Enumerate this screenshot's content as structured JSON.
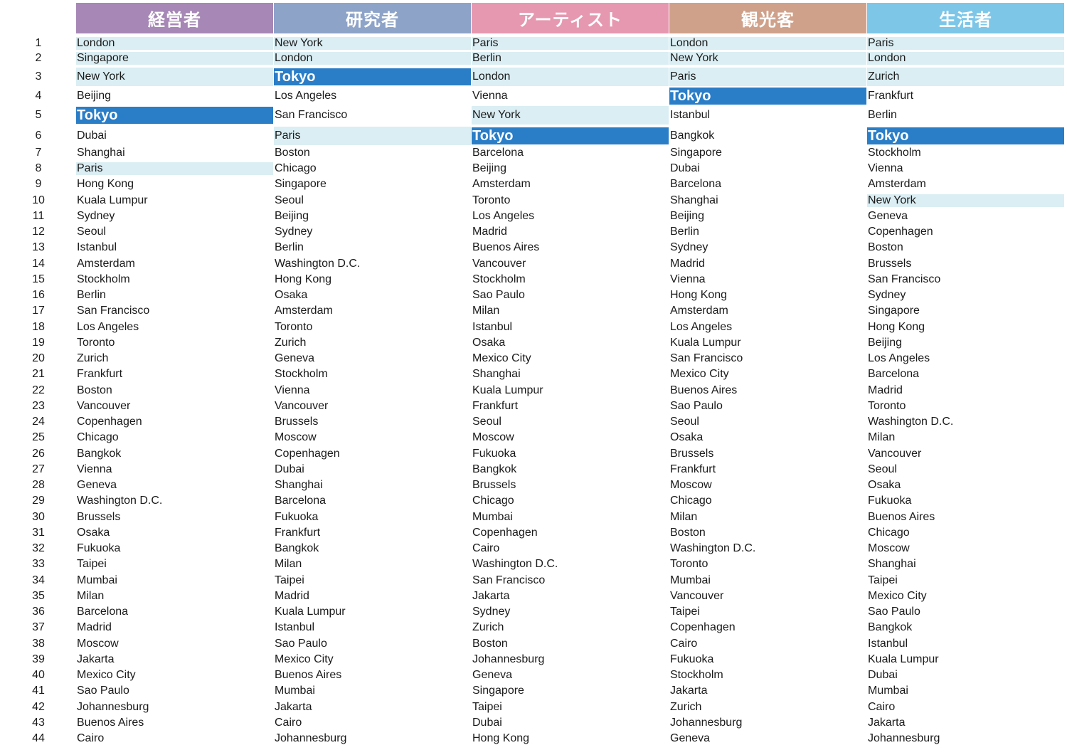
{
  "colors": {
    "header": [
      "#a687b5",
      "#8ea3c8",
      "#e698b0",
      "#d0a18a",
      "#7dc6e8"
    ],
    "highlight_light": "#daeef3",
    "highlight_tokyo": "#2a7dc7"
  },
  "highlight_city": "Tokyo",
  "categories": [
    "経営者",
    "研究者",
    "アーティスト",
    "観光客",
    "生活者"
  ],
  "ranks": [
    "1",
    "2",
    "3",
    "4",
    "5",
    "6",
    "7",
    "8",
    "9",
    "10",
    "11",
    "12",
    "13",
    "14",
    "15",
    "16",
    "17",
    "18",
    "19",
    "20",
    "21",
    "22",
    "23",
    "24",
    "25",
    "26",
    "27",
    "28",
    "29",
    "30",
    "31",
    "32",
    "33",
    "34",
    "35",
    "36",
    "37",
    "38",
    "39",
    "40",
    "41",
    "42",
    "43",
    "44"
  ],
  "columns": [
    [
      "London",
      "Singapore",
      "New York",
      "Beijing",
      "Tokyo",
      "Dubai",
      "Shanghai",
      "Paris",
      "Hong Kong",
      "Kuala Lumpur",
      "Sydney",
      "Seoul",
      "Istanbul",
      "Amsterdam",
      "Stockholm",
      "Berlin",
      "San Francisco",
      "Los Angeles",
      "Toronto",
      "Zurich",
      "Frankfurt",
      "Boston",
      "Vancouver",
      "Copenhagen",
      "Chicago",
      "Bangkok",
      "Vienna",
      "Geneva",
      "Washington D.C.",
      "Brussels",
      "Osaka",
      "Fukuoka",
      "Taipei",
      "Mumbai",
      "Milan",
      "Barcelona",
      "Madrid",
      "Moscow",
      "Jakarta",
      "Mexico City",
      "Sao Paulo",
      "Johannesburg",
      "Buenos Aires",
      "Cairo"
    ],
    [
      "New York",
      "London",
      "Tokyo",
      "Los Angeles",
      "San Francisco",
      "Paris",
      "Boston",
      "Chicago",
      "Singapore",
      "Seoul",
      "Beijing",
      "Sydney",
      "Berlin",
      "Washington D.C.",
      "Hong Kong",
      "Osaka",
      "Amsterdam",
      "Toronto",
      "Zurich",
      "Geneva",
      "Stockholm",
      "Vienna",
      "Vancouver",
      "Brussels",
      "Moscow",
      "Copenhagen",
      "Dubai",
      "Shanghai",
      "Barcelona",
      "Fukuoka",
      "Frankfurt",
      "Bangkok",
      "Milan",
      "Taipei",
      "Madrid",
      "Kuala Lumpur",
      "Istanbul",
      "Sao Paulo",
      "Mexico City",
      "Buenos Aires",
      "Mumbai",
      "Jakarta",
      "Cairo",
      "Johannesburg"
    ],
    [
      "Paris",
      "Berlin",
      "London",
      "Vienna",
      "New York",
      "Tokyo",
      "Barcelona",
      "Beijing",
      "Amsterdam",
      "Toronto",
      "Los Angeles",
      "Madrid",
      "Buenos Aires",
      "Vancouver",
      "Stockholm",
      "Sao Paulo",
      "Milan",
      "Istanbul",
      "Osaka",
      "Mexico City",
      "Shanghai",
      "Kuala Lumpur",
      "Frankfurt",
      "Seoul",
      "Moscow",
      "Fukuoka",
      "Bangkok",
      "Brussels",
      "Chicago",
      "Mumbai",
      "Copenhagen",
      "Cairo",
      "Washington D.C.",
      "San Francisco",
      "Jakarta",
      "Sydney",
      "Zurich",
      "Boston",
      "Johannesburg",
      "Geneva",
      "Singapore",
      "Taipei",
      "Dubai",
      "Hong Kong"
    ],
    [
      "London",
      "New York",
      "Paris",
      "Tokyo",
      "Istanbul",
      "Bangkok",
      "Singapore",
      "Dubai",
      "Barcelona",
      "Shanghai",
      "Beijing",
      "Berlin",
      "Sydney",
      "Madrid",
      "Vienna",
      "Hong Kong",
      "Amsterdam",
      "Los Angeles",
      "Kuala Lumpur",
      "San Francisco",
      "Mexico City",
      "Buenos Aires",
      "Sao Paulo",
      "Seoul",
      "Osaka",
      "Brussels",
      "Frankfurt",
      "Moscow",
      "Chicago",
      "Milan",
      "Boston",
      "Washington D.C.",
      "Toronto",
      "Mumbai",
      "Vancouver",
      "Taipei",
      "Copenhagen",
      "Cairo",
      "Fukuoka",
      "Stockholm",
      "Jakarta",
      "Zurich",
      "Johannesburg",
      "Geneva"
    ],
    [
      "Paris",
      "London",
      "Zurich",
      "Frankfurt",
      "Berlin",
      "Tokyo",
      "Stockholm",
      "Vienna",
      "Amsterdam",
      "New York",
      "Geneva",
      "Copenhagen",
      "Boston",
      "Brussels",
      "San Francisco",
      "Sydney",
      "Singapore",
      "Hong Kong",
      "Beijing",
      "Los Angeles",
      "Barcelona",
      "Madrid",
      "Toronto",
      "Washington D.C.",
      "Milan",
      "Vancouver",
      "Seoul",
      "Osaka",
      "Fukuoka",
      "Buenos Aires",
      "Chicago",
      "Moscow",
      "Shanghai",
      "Taipei",
      "Mexico City",
      "Sao Paulo",
      "Bangkok",
      "Istanbul",
      "Kuala Lumpur",
      "Dubai",
      "Mumbai",
      "Cairo",
      "Jakarta",
      "Johannesburg"
    ]
  ],
  "highlights": {
    "light": [
      [
        0,
        0
      ],
      [
        1,
        0
      ],
      [
        2,
        0
      ],
      [
        3,
        0
      ],
      [
        4,
        0
      ],
      [
        0,
        1
      ],
      [
        1,
        1
      ],
      [
        2,
        1
      ],
      [
        3,
        1
      ],
      [
        4,
        1
      ],
      [
        0,
        2
      ],
      [
        2,
        2
      ],
      [
        3,
        2
      ],
      [
        4,
        2
      ],
      [
        2,
        4
      ],
      [
        1,
        5
      ],
      [
        0,
        7
      ],
      [
        4,
        9
      ]
    ],
    "tokyo": [
      [
        0,
        4
      ],
      [
        1,
        2
      ],
      [
        2,
        5
      ],
      [
        3,
        3
      ],
      [
        4,
        5
      ]
    ]
  }
}
